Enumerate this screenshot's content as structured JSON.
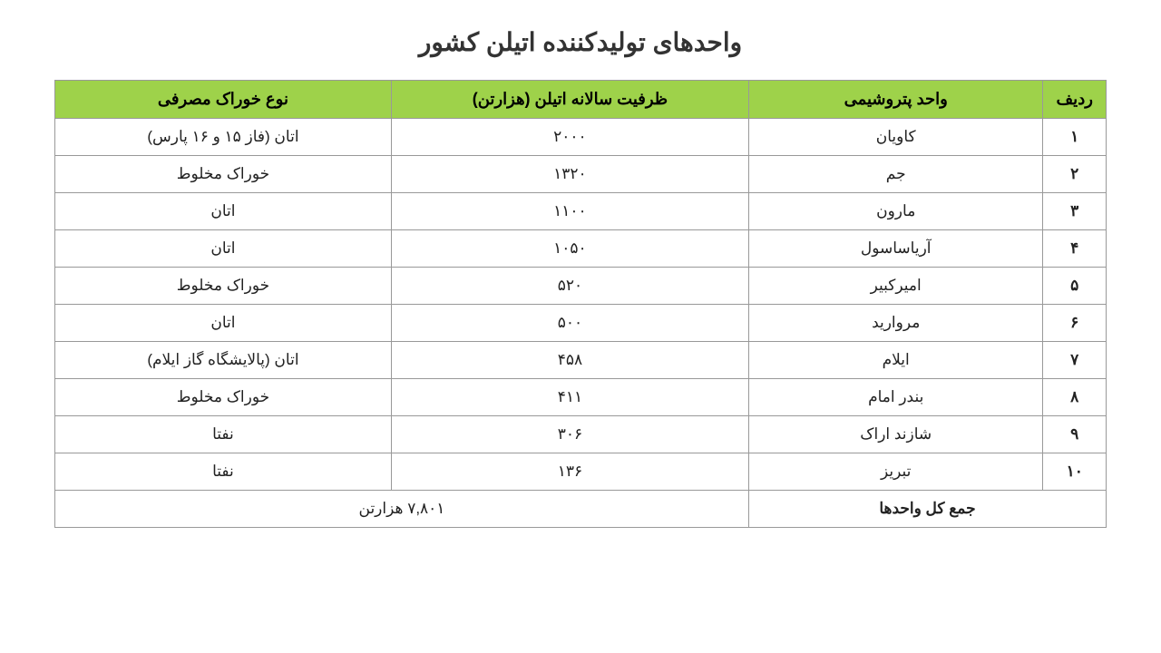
{
  "title": "واحدهای تولیدکننده اتیلن کشور",
  "columns": {
    "row": "ردیف",
    "unit": "واحد پتروشیمی",
    "capacity": "ظرفیت سالانه اتیلن (هزارتن)",
    "feed": "نوع خوراک مصرفی"
  },
  "rows": [
    {
      "num": "۱",
      "unit": "کاویان",
      "capacity": "۲۰۰۰",
      "feed": "اتان (فاز ۱۵ و ۱۶ پارس)"
    },
    {
      "num": "۲",
      "unit": "جم",
      "capacity": "۱۳۲۰",
      "feed": "خوراک مخلوط"
    },
    {
      "num": "۳",
      "unit": "مارون",
      "capacity": "۱۱۰۰",
      "feed": "اتان"
    },
    {
      "num": "۴",
      "unit": "آریاساسول",
      "capacity": "۱۰۵۰",
      "feed": "اتان"
    },
    {
      "num": "۵",
      "unit": "امیرکبیر",
      "capacity": "۵۲۰",
      "feed": "خوراک مخلوط"
    },
    {
      "num": "۶",
      "unit": "مروارید",
      "capacity": "۵۰۰",
      "feed": "اتان"
    },
    {
      "num": "۷",
      "unit": "ایلام",
      "capacity": "۴۵۸",
      "feed": "اتان (پالایشگاه گاز ایلام)"
    },
    {
      "num": "۸",
      "unit": "بندر امام",
      "capacity": "۴۱۱",
      "feed": "خوراک مخلوط"
    },
    {
      "num": "۹",
      "unit": "شازند اراک",
      "capacity": "۳۰۶",
      "feed": "نفتا"
    },
    {
      "num": "۱۰",
      "unit": "تبریز",
      "capacity": "۱۳۶",
      "feed": "نفتا"
    }
  ],
  "total": {
    "label": "جمع کل واحدها",
    "value": "۷,۸۰۱ هزارتن"
  },
  "style": {
    "header_bg": "#9ed24a",
    "border_color": "#999999",
    "bg": "#ffffff",
    "title_fontsize": 28,
    "header_fontsize": 18,
    "cell_fontsize": 17
  }
}
